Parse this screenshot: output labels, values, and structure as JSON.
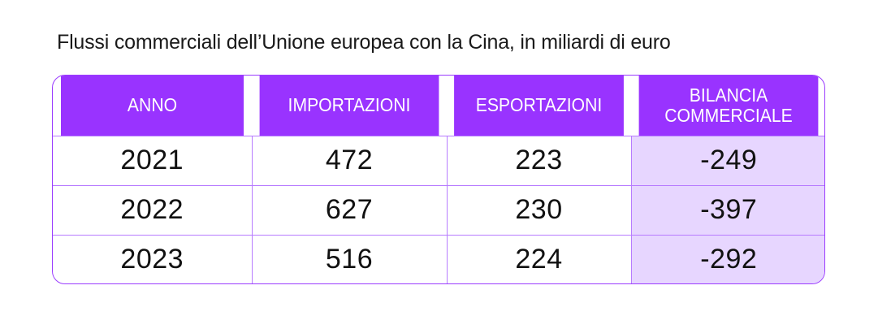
{
  "caption": "Flussi commerciali dell’Unione europea con la Cina, in miliardi di euro",
  "colors": {
    "header_bg": "#9933ff",
    "balance_column_bg": "#e7d6ff",
    "border": "#b77bff"
  },
  "chart_data": {
    "type": "table",
    "title": "Flussi commerciali dell’Unione europea con la Cina, in miliardi di euro",
    "headers": [
      "ANNO",
      "IMPORTAZIONI",
      "ESPORTAZIONI",
      "BILANCIA COMMERCIALE"
    ],
    "rows": [
      [
        "2021",
        "472",
        "223",
        "-249"
      ],
      [
        "2022",
        "627",
        "230",
        "-397"
      ],
      [
        "2023",
        "516",
        "224",
        "-292"
      ]
    ]
  },
  "table": {
    "header": {
      "year": "ANNO",
      "imports": "IMPORTAZIONI",
      "exports": "ESPORTAZIONI",
      "balance_line1": "BILANCIA",
      "balance_line2": "COMMERCIALE"
    },
    "rows": [
      {
        "year": "2021",
        "imports": "472",
        "exports": "223",
        "balance": "-249"
      },
      {
        "year": "2022",
        "imports": "627",
        "exports": "230",
        "balance": "-397"
      },
      {
        "year": "2023",
        "imports": "516",
        "exports": "224",
        "balance": "-292"
      }
    ]
  }
}
